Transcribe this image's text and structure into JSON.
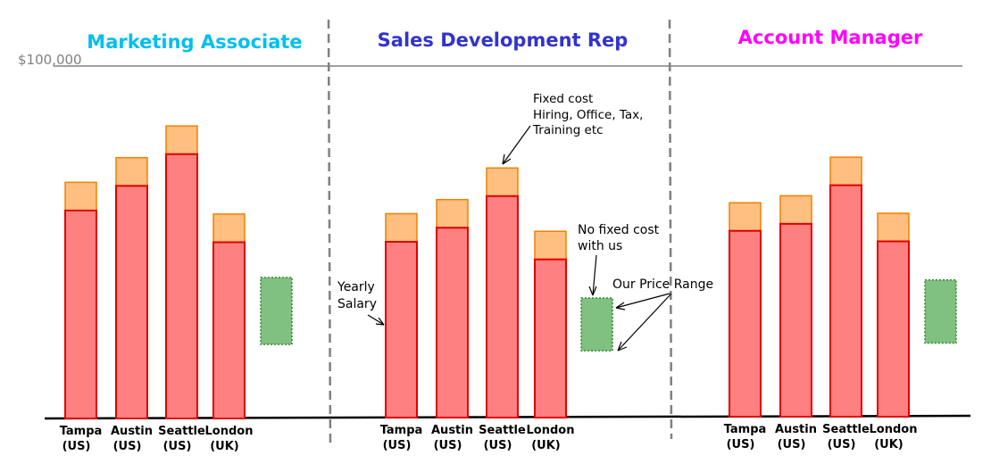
{
  "chart_data": {
    "type": "bar",
    "stacked": true,
    "reference_line": {
      "value": 100000,
      "label": "$100,000",
      "color": "#808080"
    },
    "colors": {
      "salary_fill": "#ff8080",
      "salary_stroke": "#e00000",
      "fixed_fill": "#ffbf80",
      "fixed_stroke": "#f08000",
      "range_fill": "#80c080",
      "range_stroke": "#2d8a2d",
      "panel_titles": [
        "#00bff0",
        "#3333cc",
        "#ff00ff"
      ]
    },
    "panels": [
      {
        "title": "Marketing Associate",
        "categories": [
          [
            "Tampa",
            "(US)"
          ],
          [
            "Austin",
            "(US)"
          ],
          [
            "Seattle",
            "(US)"
          ],
          [
            "London",
            "(UK)"
          ]
        ],
        "series": [
          {
            "name": "Yearly Salary",
            "values": [
              59000,
              66000,
              75000,
              50000
            ]
          },
          {
            "name": "Fixed cost",
            "values": [
              8000,
              8000,
              8000,
              8000
            ]
          }
        ],
        "price_range": [
          21000,
          40000
        ]
      },
      {
        "title": "Sales Development Rep",
        "categories": [
          [
            "Tampa",
            "(US)"
          ],
          [
            "Austin",
            "(US)"
          ],
          [
            "Seattle",
            "(US)"
          ],
          [
            "London",
            "(UK)"
          ]
        ],
        "series": [
          {
            "name": "Yearly Salary",
            "values": [
              50000,
              54000,
              63000,
              45000
            ]
          },
          {
            "name": "Fixed cost",
            "values": [
              8000,
              8000,
              8000,
              8000
            ]
          }
        ],
        "price_range": [
          19000,
          34000
        ]
      },
      {
        "title": "Account Manager",
        "categories": [
          [
            "Tampa",
            "(US)"
          ],
          [
            "Austin",
            "(US)"
          ],
          [
            "Seattle",
            "(US)"
          ],
          [
            "London",
            "(UK)"
          ]
        ],
        "series": [
          {
            "name": "Yearly Salary",
            "values": [
              53000,
              55000,
              66000,
              50000
            ]
          },
          {
            "name": "Fixed cost",
            "values": [
              8000,
              8000,
              8000,
              8000
            ]
          }
        ],
        "price_range": [
          21000,
          39000
        ]
      }
    ],
    "annotations": {
      "fixed_cost": [
        "Fixed cost",
        "Hiring, Office, Tax,",
        "Training etc"
      ],
      "no_fixed_cost": [
        "No fixed cost",
        "with us"
      ],
      "yearly_salary": [
        "Yearly",
        "Salary"
      ],
      "price_range": "Our Price Range"
    }
  }
}
